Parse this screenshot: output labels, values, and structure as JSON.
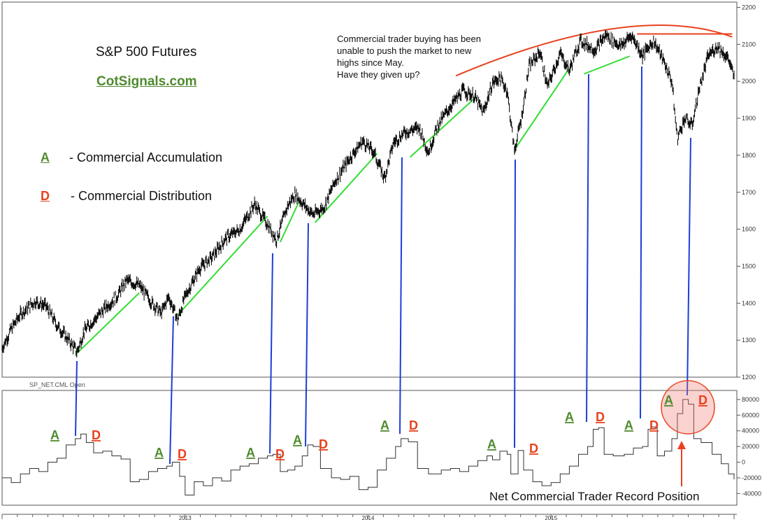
{
  "chart_data": [
    {
      "type": "line",
      "title": "S&P 500 Futures",
      "subtitle": "CotSignals.com",
      "ylim": [
        1200,
        2200
      ],
      "y_ticks": [
        "2200",
        "2100",
        "2000",
        "1900",
        "1800",
        "1700",
        "1600",
        "1500",
        "1400",
        "1300",
        "1200"
      ],
      "x_ticks": [
        "2013",
        "2014",
        "2015"
      ],
      "grid": false,
      "series": [
        {
          "key": "price",
          "points": [
            [
              2012.0,
              1278
            ],
            [
              2012.05,
              1330
            ],
            [
              2012.1,
              1370
            ],
            [
              2012.18,
              1405
            ],
            [
              2012.24,
              1392
            ],
            [
              2012.3,
              1340
            ],
            [
              2012.37,
              1296
            ],
            [
              2012.41,
              1268
            ],
            [
              2012.45,
              1326
            ],
            [
              2012.55,
              1380
            ],
            [
              2012.63,
              1420
            ],
            [
              2012.68,
              1462
            ],
            [
              2012.75,
              1448
            ],
            [
              2012.82,
              1400
            ],
            [
              2012.87,
              1372
            ],
            [
              2012.91,
              1418
            ],
            [
              2012.96,
              1355
            ],
            [
              2013.0,
              1418
            ],
            [
              2013.08,
              1495
            ],
            [
              2013.15,
              1525
            ],
            [
              2013.22,
              1575
            ],
            [
              2013.3,
              1600
            ],
            [
              2013.38,
              1668
            ],
            [
              2013.45,
              1614
            ],
            [
              2013.5,
              1572
            ],
            [
              2013.56,
              1662
            ],
            [
              2013.6,
              1695
            ],
            [
              2013.66,
              1660
            ],
            [
              2013.7,
              1640
            ],
            [
              2013.76,
              1660
            ],
            [
              2013.82,
              1730
            ],
            [
              2013.9,
              1792
            ],
            [
              2013.97,
              1838
            ],
            [
              2014.03,
              1810
            ],
            [
              2014.09,
              1738
            ],
            [
              2014.14,
              1835
            ],
            [
              2014.2,
              1862
            ],
            [
              2014.28,
              1875
            ],
            [
              2014.33,
              1808
            ],
            [
              2014.38,
              1880
            ],
            [
              2014.45,
              1932
            ],
            [
              2014.52,
              1975
            ],
            [
              2014.58,
              1960
            ],
            [
              2014.63,
              1915
            ],
            [
              2014.68,
              1995
            ],
            [
              2014.72,
              2010
            ],
            [
              2014.76,
              1975
            ],
            [
              2014.8,
              1812
            ],
            [
              2014.84,
              1905
            ],
            [
              2014.88,
              2040
            ],
            [
              2014.94,
              2080
            ],
            [
              2014.98,
              1985
            ],
            [
              2015.05,
              2075
            ],
            [
              2015.1,
              2030
            ],
            [
              2015.16,
              2110
            ],
            [
              2015.24,
              2085
            ],
            [
              2015.3,
              2125
            ],
            [
              2015.38,
              2095
            ],
            [
              2015.44,
              2125
            ],
            [
              2015.5,
              2070
            ],
            [
              2015.56,
              2110
            ],
            [
              2015.62,
              2050
            ],
            [
              2015.66,
              2000
            ],
            [
              2015.69,
              1845
            ],
            [
              2015.73,
              1900
            ],
            [
              2015.77,
              1880
            ],
            [
              2015.81,
              1980
            ],
            [
              2015.86,
              2070
            ],
            [
              2015.91,
              2095
            ],
            [
              2015.97,
              2060
            ],
            [
              2016.0,
              2010
            ]
          ]
        },
        {
          "key": "net_commercial",
          "name": "SP_NET.CML Open",
          "points": [
            [
              2012.0,
              -20000
            ],
            [
              2012.05,
              -26000
            ],
            [
              2012.1,
              -15000
            ],
            [
              2012.15,
              -8000
            ],
            [
              2012.2,
              -12000
            ],
            [
              2012.25,
              0
            ],
            [
              2012.3,
              5000
            ],
            [
              2012.35,
              22000
            ],
            [
              2012.4,
              30000
            ],
            [
              2012.43,
              36000
            ],
            [
              2012.46,
              25000
            ],
            [
              2012.5,
              12000
            ],
            [
              2012.55,
              14000
            ],
            [
              2012.6,
              8000
            ],
            [
              2012.65,
              4000
            ],
            [
              2012.7,
              -25000
            ],
            [
              2012.75,
              -22000
            ],
            [
              2012.8,
              -12000
            ],
            [
              2012.85,
              -8000
            ],
            [
              2012.9,
              -5000
            ],
            [
              2012.93,
              0
            ],
            [
              2012.97,
              -18000
            ],
            [
              2013.0,
              -42000
            ],
            [
              2013.05,
              -25000
            ],
            [
              2013.1,
              -30000
            ],
            [
              2013.15,
              -20000
            ],
            [
              2013.2,
              -24000
            ],
            [
              2013.25,
              -10000
            ],
            [
              2013.3,
              -5000
            ],
            [
              2013.35,
              -2000
            ],
            [
              2013.4,
              5000
            ],
            [
              2013.45,
              8000
            ],
            [
              2013.48,
              10000
            ],
            [
              2013.52,
              -12000
            ],
            [
              2013.56,
              -10000
            ],
            [
              2013.6,
              -5000
            ],
            [
              2013.64,
              8000
            ],
            [
              2013.67,
              22000
            ],
            [
              2013.7,
              20000
            ],
            [
              2013.74,
              -8000
            ],
            [
              2013.8,
              -20000
            ],
            [
              2013.85,
              -22000
            ],
            [
              2013.9,
              -18000
            ],
            [
              2013.95,
              -35000
            ],
            [
              2014.0,
              -32000
            ],
            [
              2014.05,
              -10000
            ],
            [
              2014.1,
              5000
            ],
            [
              2014.15,
              20000
            ],
            [
              2014.18,
              30000
            ],
            [
              2014.22,
              26000
            ],
            [
              2014.27,
              -8000
            ],
            [
              2014.33,
              -15000
            ],
            [
              2014.4,
              -10000
            ],
            [
              2014.45,
              -8000
            ],
            [
              2014.5,
              -12000
            ],
            [
              2014.55,
              -5000
            ],
            [
              2014.6,
              2000
            ],
            [
              2014.65,
              8000
            ],
            [
              2014.68,
              3000
            ],
            [
              2014.72,
              14000
            ],
            [
              2014.76,
              10000
            ],
            [
              2014.78,
              -15000
            ],
            [
              2014.82,
              15000
            ],
            [
              2014.85,
              -10000
            ],
            [
              2014.9,
              -25000
            ],
            [
              2014.95,
              -30000
            ],
            [
              2015.0,
              -26000
            ],
            [
              2015.05,
              -15000
            ],
            [
              2015.1,
              -5000
            ],
            [
              2015.15,
              10000
            ],
            [
              2015.2,
              20000
            ],
            [
              2015.23,
              42000
            ],
            [
              2015.26,
              44000
            ],
            [
              2015.29,
              10000
            ],
            [
              2015.34,
              8000
            ],
            [
              2015.4,
              10000
            ],
            [
              2015.45,
              18000
            ],
            [
              2015.5,
              20000
            ],
            [
              2015.53,
              42000
            ],
            [
              2015.55,
              45000
            ],
            [
              2015.58,
              8000
            ],
            [
              2015.62,
              14000
            ],
            [
              2015.66,
              30000
            ],
            [
              2015.69,
              62000
            ],
            [
              2015.72,
              80000
            ],
            [
              2015.75,
              74000
            ],
            [
              2015.78,
              30000
            ],
            [
              2015.82,
              25000
            ],
            [
              2015.88,
              10000
            ],
            [
              2015.93,
              -2000
            ],
            [
              2015.97,
              -15000
            ],
            [
              2016.0,
              -22000
            ]
          ]
        }
      ],
      "lower_panel": {
        "ylim": [
          -50000,
          90000
        ],
        "y_ticks": [
          "80000",
          "60000",
          "40000",
          "20000",
          "0",
          "-20000",
          "-40000"
        ]
      },
      "trend_segments": [
        [
          [
            2012.41,
            1265
          ],
          [
            2012.75,
            1428
          ]
        ],
        [
          [
            2012.96,
            1368
          ],
          [
            2013.45,
            1635
          ]
        ],
        [
          [
            2013.52,
            1565
          ],
          [
            2013.62,
            1672
          ]
        ],
        [
          [
            2013.71,
            1618
          ],
          [
            2014.05,
            1805
          ]
        ],
        [
          [
            2014.23,
            1795
          ],
          [
            2014.58,
            1953
          ]
        ],
        [
          [
            2014.8,
            1815
          ],
          [
            2015.1,
            2035
          ]
        ],
        [
          [
            2015.18,
            2020
          ],
          [
            2015.43,
            2068
          ]
        ]
      ],
      "resistance_arc": [
        [
          2014.48,
          2015
        ],
        [
          2015.45,
          2155
        ],
        [
          2015.99,
          2120
        ]
      ],
      "resistance_line": [
        [
          2015.47,
          2128
        ],
        [
          2015.99,
          2128
        ]
      ],
      "connectors": [
        [
          2012.42,
          2012.42
        ],
        [
          2012.96,
          2012.95
        ],
        [
          2013.52,
          2013.5
        ],
        [
          2013.7,
          2013.69
        ],
        [
          2014.22,
          2014.2
        ],
        [
          2014.81,
          2014.82
        ],
        [
          2015.22,
          2015.2
        ],
        [
          2015.55,
          2015.54
        ],
        [
          2015.83,
          2015.8
        ]
      ],
      "labels": {
        "accumulation_letter": "A",
        "distribution_letter": "D",
        "legend_accumulation": "- Commercial Accumulation",
        "legend_distribution": "- Commercial Distribution",
        "note": "Commercial trader buying has been\nunable to push the market to new\nhighs since May.\nHave they given up?",
        "record_callout": "Net Commercial Trader Record Position"
      },
      "colors": {
        "price": "#111111",
        "trend": "#33dd33",
        "connector": "#1c3fd6",
        "resistance": "#e8421e",
        "accumulation": "#4f8a2e",
        "distribution": "#e8421e"
      }
    }
  ]
}
